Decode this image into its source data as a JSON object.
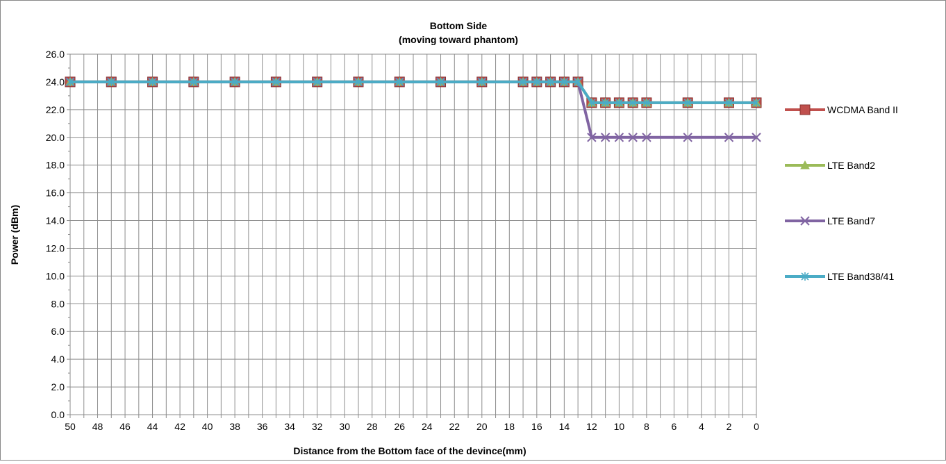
{
  "chart_data": {
    "type": "line",
    "title": "Bottom Side",
    "subtitle": "(moving toward phantom)",
    "xlabel": "Distance from the Bottom face of the devince(mm)",
    "ylabel": "Power (dBm)",
    "ylim": [
      0,
      26
    ],
    "yticks": [
      "0.0",
      "2.0",
      "4.0",
      "6.0",
      "8.0",
      "10.0",
      "12.0",
      "14.0",
      "16.0",
      "18.0",
      "20.0",
      "22.0",
      "24.0",
      "26.0"
    ],
    "x_reversed": true,
    "grid": true,
    "legend_position": "right",
    "categories": [
      50,
      47,
      44,
      41,
      38,
      35,
      32,
      29,
      26,
      23,
      20,
      17,
      16,
      15,
      14,
      13,
      12,
      11,
      10,
      9,
      8,
      5,
      2,
      0
    ],
    "xtick_labels": [
      "50",
      "48",
      "46",
      "44",
      "42",
      "40",
      "38",
      "36",
      "34",
      "32",
      "30",
      "28",
      "26",
      "24",
      "22",
      "20",
      "18",
      "16",
      "14",
      "12",
      "10",
      "8",
      "6",
      "4",
      "2",
      "0"
    ],
    "series": [
      {
        "name": "WCDMA Band II",
        "color": "#C0504D",
        "marker": "square",
        "values": [
          24,
          24,
          24,
          24,
          24,
          24,
          24,
          24,
          24,
          24,
          24,
          24,
          24,
          24,
          24,
          24,
          22.5,
          22.5,
          22.5,
          22.5,
          22.5,
          22.5,
          22.5,
          22.5
        ]
      },
      {
        "name": "LTE Band2",
        "color": "#9BBB59",
        "marker": "triangle",
        "values": [
          24,
          24,
          24,
          24,
          24,
          24,
          24,
          24,
          24,
          24,
          24,
          24,
          24,
          24,
          24,
          24,
          22.5,
          22.5,
          22.5,
          22.5,
          22.5,
          22.5,
          22.5,
          22.5
        ]
      },
      {
        "name": "LTE Band7",
        "color": "#8064A2",
        "marker": "x",
        "values": [
          24,
          24,
          24,
          24,
          24,
          24,
          24,
          24,
          24,
          24,
          24,
          24,
          24,
          24,
          24,
          24,
          20,
          20,
          20,
          20,
          20,
          20,
          20,
          20
        ]
      },
      {
        "name": "LTE Band38/41",
        "color": "#4BACC6",
        "marker": "star",
        "values": [
          24,
          24,
          24,
          24,
          24,
          24,
          24,
          24,
          24,
          24,
          24,
          24,
          24,
          24,
          24,
          24,
          22.5,
          22.5,
          22.5,
          22.5,
          22.5,
          22.5,
          22.5,
          22.5
        ]
      }
    ]
  }
}
